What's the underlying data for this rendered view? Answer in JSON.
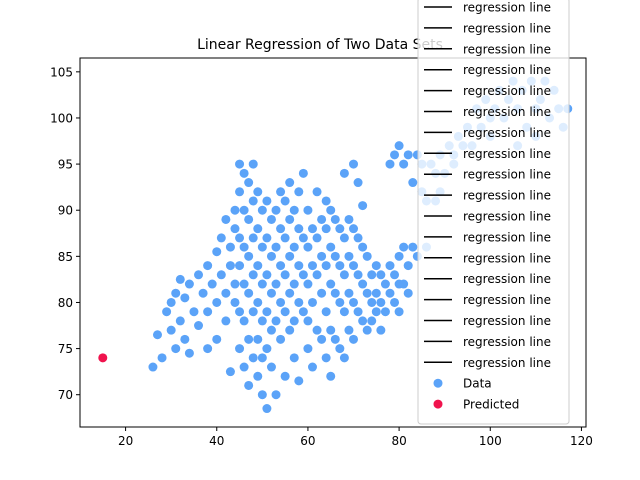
{
  "chart_data": {
    "type": "scatter",
    "title": "Linear Regression of Two Data Sets",
    "xlabel": "",
    "ylabel": "",
    "xlim": [
      10,
      121
    ],
    "ylim": [
      66.5,
      106.5
    ],
    "xticks": [
      20,
      40,
      60,
      80,
      100,
      120
    ],
    "yticks": [
      70,
      75,
      80,
      85,
      90,
      95,
      100,
      105
    ],
    "grid": false,
    "legend_position": "upper-right",
    "legend": [
      "regression line",
      "regression line",
      "regression line",
      "regression line",
      "regression line",
      "regression line",
      "regression line",
      "regression line",
      "regression line",
      "regression line",
      "regression line",
      "regression line",
      "regression line",
      "regression line",
      "regression line",
      "regression line",
      "regression line",
      "regression line",
      "Data",
      "Predicted"
    ],
    "colors": {
      "data": "#5ba3f8",
      "predicted": "#f0134d",
      "line": "#000000"
    },
    "series": [
      {
        "name": "Data",
        "color": "#5ba3f8",
        "points": [
          [
            26,
            73
          ],
          [
            27,
            76.5
          ],
          [
            28,
            74
          ],
          [
            29,
            79
          ],
          [
            30,
            80
          ],
          [
            30,
            77
          ],
          [
            31,
            81
          ],
          [
            31,
            75
          ],
          [
            32,
            82.5
          ],
          [
            32,
            78
          ],
          [
            33,
            80.5
          ],
          [
            33,
            76
          ],
          [
            34,
            82
          ],
          [
            34,
            74.5
          ],
          [
            35,
            79
          ],
          [
            36,
            77.5
          ],
          [
            36,
            83
          ],
          [
            37,
            81
          ],
          [
            38,
            84
          ],
          [
            38,
            79
          ],
          [
            38,
            75
          ],
          [
            39,
            82
          ],
          [
            40,
            85.5
          ],
          [
            40,
            80
          ],
          [
            40,
            76
          ],
          [
            41,
            87
          ],
          [
            41,
            83
          ],
          [
            42,
            89
          ],
          [
            42,
            81
          ],
          [
            42,
            78
          ],
          [
            43,
            86
          ],
          [
            43,
            84
          ],
          [
            43,
            72.5
          ],
          [
            44,
            90
          ],
          [
            44,
            88
          ],
          [
            44,
            82
          ],
          [
            44,
            80
          ],
          [
            45,
            95
          ],
          [
            45,
            92
          ],
          [
            45,
            87
          ],
          [
            45,
            84
          ],
          [
            45,
            79
          ],
          [
            45,
            75
          ],
          [
            46,
            94
          ],
          [
            46,
            90
          ],
          [
            46,
            86
          ],
          [
            46,
            82
          ],
          [
            46,
            78
          ],
          [
            46,
            73
          ],
          [
            47,
            93
          ],
          [
            47,
            89
          ],
          [
            47,
            85
          ],
          [
            47,
            81
          ],
          [
            47,
            76
          ],
          [
            47,
            71
          ],
          [
            48,
            95
          ],
          [
            48,
            91
          ],
          [
            48,
            87
          ],
          [
            48,
            83
          ],
          [
            48,
            79
          ],
          [
            48,
            74
          ],
          [
            49,
            92
          ],
          [
            49,
            88
          ],
          [
            49,
            84
          ],
          [
            49,
            80
          ],
          [
            49,
            76
          ],
          [
            49,
            72
          ],
          [
            50,
            90
          ],
          [
            50,
            86
          ],
          [
            50,
            82
          ],
          [
            50,
            78
          ],
          [
            50,
            74
          ],
          [
            50,
            70
          ],
          [
            51,
            91
          ],
          [
            51,
            87
          ],
          [
            51,
            83
          ],
          [
            51,
            79
          ],
          [
            51,
            75
          ],
          [
            51,
            68.5
          ],
          [
            52,
            89
          ],
          [
            52,
            85
          ],
          [
            52,
            81
          ],
          [
            52,
            77
          ],
          [
            52,
            73
          ],
          [
            53,
            90
          ],
          [
            53,
            86
          ],
          [
            53,
            82
          ],
          [
            53,
            78
          ],
          [
            53,
            70
          ],
          [
            54,
            92
          ],
          [
            54,
            88
          ],
          [
            54,
            84
          ],
          [
            54,
            80
          ],
          [
            54,
            76
          ],
          [
            55,
            91
          ],
          [
            55,
            87
          ],
          [
            55,
            83
          ],
          [
            55,
            79
          ],
          [
            55,
            72
          ],
          [
            56,
            93
          ],
          [
            56,
            89
          ],
          [
            56,
            85
          ],
          [
            56,
            81
          ],
          [
            56,
            77
          ],
          [
            57,
            90
          ],
          [
            57,
            86
          ],
          [
            57,
            82
          ],
          [
            57,
            78
          ],
          [
            57,
            74
          ],
          [
            58,
            92
          ],
          [
            58,
            88
          ],
          [
            58,
            84
          ],
          [
            58,
            80
          ],
          [
            58,
            71.5
          ],
          [
            59,
            94
          ],
          [
            59,
            87
          ],
          [
            59,
            83
          ],
          [
            59,
            79
          ],
          [
            60,
            90
          ],
          [
            60,
            86
          ],
          [
            60,
            82
          ],
          [
            60,
            78
          ],
          [
            60,
            75
          ],
          [
            61,
            88
          ],
          [
            61,
            84
          ],
          [
            61,
            80
          ],
          [
            61,
            73
          ],
          [
            62,
            92
          ],
          [
            62,
            87
          ],
          [
            62,
            83
          ],
          [
            62,
            77
          ],
          [
            63,
            89
          ],
          [
            63,
            85
          ],
          [
            63,
            81
          ],
          [
            63,
            76
          ],
          [
            64,
            91
          ],
          [
            64,
            88
          ],
          [
            64,
            84
          ],
          [
            64,
            79
          ],
          [
            64,
            74
          ],
          [
            65,
            90
          ],
          [
            65,
            86
          ],
          [
            65,
            82
          ],
          [
            65,
            77
          ],
          [
            65,
            72
          ],
          [
            66,
            89
          ],
          [
            66,
            85
          ],
          [
            66,
            81
          ],
          [
            66,
            76
          ],
          [
            67,
            88
          ],
          [
            67,
            84
          ],
          [
            67,
            80
          ],
          [
            67,
            75
          ],
          [
            68,
            94
          ],
          [
            68,
            87
          ],
          [
            68,
            83
          ],
          [
            68,
            79
          ],
          [
            68,
            74
          ],
          [
            69,
            89
          ],
          [
            69,
            85
          ],
          [
            69,
            81
          ],
          [
            69,
            77
          ],
          [
            70,
            95
          ],
          [
            70,
            88
          ],
          [
            70,
            84
          ],
          [
            70,
            80
          ],
          [
            70,
            76
          ],
          [
            71,
            93
          ],
          [
            71,
            87
          ],
          [
            71,
            83
          ],
          [
            71,
            79
          ],
          [
            72,
            86
          ],
          [
            72,
            82
          ],
          [
            72,
            78
          ],
          [
            72,
            90.5
          ],
          [
            73,
            85
          ],
          [
            73,
            81
          ],
          [
            73,
            77
          ],
          [
            74,
            83
          ],
          [
            74,
            80
          ],
          [
            74,
            78
          ],
          [
            75,
            84
          ],
          [
            75,
            81
          ],
          [
            75,
            79
          ],
          [
            76,
            83
          ],
          [
            76,
            80
          ],
          [
            76,
            77
          ],
          [
            77,
            82
          ],
          [
            77,
            79
          ],
          [
            78,
            95
          ],
          [
            78,
            84
          ],
          [
            78,
            81
          ],
          [
            79,
            96
          ],
          [
            79,
            83
          ],
          [
            79,
            80
          ],
          [
            80,
            97
          ],
          [
            80,
            85
          ],
          [
            80,
            82
          ],
          [
            80,
            79
          ],
          [
            81,
            95
          ],
          [
            81,
            82
          ],
          [
            81,
            86
          ],
          [
            82,
            96
          ],
          [
            82,
            84
          ],
          [
            82,
            81
          ],
          [
            83,
            93
          ],
          [
            83,
            86
          ],
          [
            84,
            96
          ],
          [
            84,
            85
          ],
          [
            85,
            95
          ],
          [
            85,
            92
          ],
          [
            86,
            91
          ],
          [
            86,
            86
          ],
          [
            87,
            95
          ],
          [
            88,
            94
          ],
          [
            88,
            91
          ],
          [
            89,
            96
          ],
          [
            89,
            92
          ],
          [
            90,
            94
          ],
          [
            91,
            97
          ],
          [
            92,
            95
          ],
          [
            92,
            96
          ],
          [
            93,
            98
          ],
          [
            94,
            97
          ],
          [
            95,
            99
          ],
          [
            96,
            97
          ],
          [
            97,
            101
          ],
          [
            98,
            99
          ],
          [
            99,
            102
          ],
          [
            100,
            100
          ],
          [
            100,
            98
          ],
          [
            101,
            101
          ],
          [
            102,
            103
          ],
          [
            103,
            100
          ],
          [
            104,
            102
          ],
          [
            105,
            104
          ],
          [
            106,
            101
          ],
          [
            106,
            97
          ],
          [
            107,
            103
          ],
          [
            108,
            99
          ],
          [
            109,
            104
          ],
          [
            110,
            101
          ],
          [
            110,
            98
          ],
          [
            111,
            102
          ],
          [
            112,
            104
          ],
          [
            113,
            100
          ],
          [
            114,
            103
          ],
          [
            115,
            101
          ],
          [
            116,
            99
          ],
          [
            117,
            101
          ]
        ]
      },
      {
        "name": "Predicted",
        "color": "#f0134d",
        "points": [
          [
            15,
            74
          ]
        ]
      }
    ]
  }
}
